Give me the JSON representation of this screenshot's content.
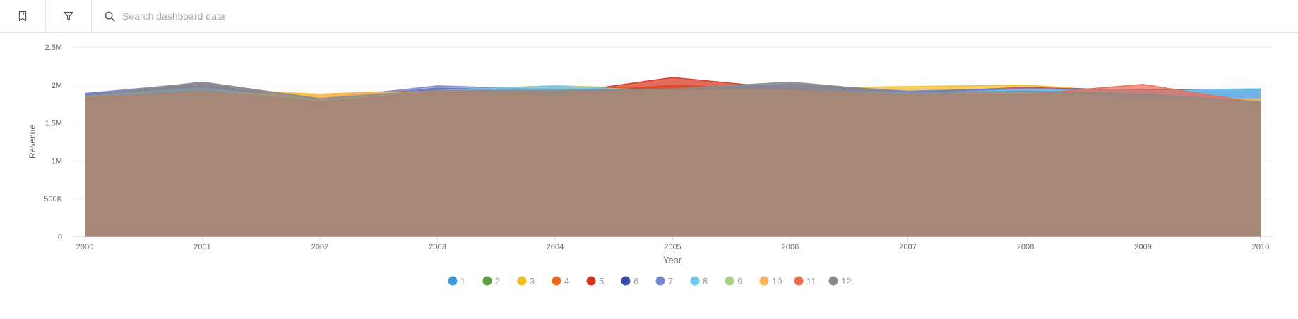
{
  "toolbar": {
    "bookmark_icon": "bookmark-icon",
    "filter_icon": "filter-icon",
    "search_icon": "search-icon",
    "search_placeholder": "Search dashboard data",
    "search_value": ""
  },
  "chart_data": {
    "type": "area",
    "xlabel": "Year",
    "ylabel": "Revenue",
    "x": [
      2000,
      2001,
      2002,
      2003,
      2004,
      2005,
      2006,
      2007,
      2008,
      2009,
      2010
    ],
    "x_tick_labels": [
      "2000",
      "2001",
      "2002",
      "2003",
      "2004",
      "2005",
      "2006",
      "2007",
      "2008",
      "2009",
      "2010"
    ],
    "ylim": [
      0,
      2500000
    ],
    "y_ticks": [
      0,
      500000,
      1000000,
      1500000,
      2000000,
      2500000
    ],
    "y_tick_labels": [
      "0",
      "500K",
      "1M",
      "1.5M",
      "2M",
      "2.5M"
    ],
    "grid": true,
    "legend_position": "bottom",
    "series": [
      {
        "name": "1",
        "color": "#3d9ad6",
        "values": [
          1850000,
          1950000,
          1800000,
          1920000,
          1960000,
          1900000,
          1950000,
          1900000,
          1950000,
          1930000,
          1950000
        ]
      },
      {
        "name": "2",
        "color": "#5e9e3c",
        "values": [
          1830000,
          1900000,
          1790000,
          1900000,
          1880000,
          1920000,
          1900000,
          1880000,
          1920000,
          1880000,
          1860000
        ]
      },
      {
        "name": "3",
        "color": "#f3bc23",
        "values": [
          1860000,
          1950000,
          1880000,
          1940000,
          1990000,
          1950000,
          1960000,
          1980000,
          2000000,
          1900000,
          1820000
        ]
      },
      {
        "name": "4",
        "color": "#f06a1b",
        "values": [
          1840000,
          1940000,
          1770000,
          1910000,
          1870000,
          2000000,
          1930000,
          1860000,
          1930000,
          1900000,
          1830000
        ]
      },
      {
        "name": "5",
        "color": "#d8351f",
        "values": [
          1870000,
          2010000,
          1800000,
          1940000,
          1880000,
          2100000,
          1950000,
          1900000,
          1970000,
          1920000,
          1840000
        ]
      },
      {
        "name": "6",
        "color": "#3f48a7",
        "values": [
          1880000,
          2000000,
          1810000,
          1960000,
          1920000,
          1930000,
          2010000,
          1910000,
          1960000,
          1940000,
          1940000
        ]
      },
      {
        "name": "7",
        "color": "#7b86d3",
        "values": [
          1890000,
          2030000,
          1820000,
          1990000,
          1940000,
          1940000,
          2020000,
          1920000,
          1960000,
          1930000,
          1930000
        ]
      },
      {
        "name": "8",
        "color": "#6ec9f1",
        "values": [
          1860000,
          1960000,
          1800000,
          1930000,
          1990000,
          1920000,
          1940000,
          1890000,
          1940000,
          1920000,
          1950000
        ]
      },
      {
        "name": "9",
        "color": "#a5d17d",
        "values": [
          1810000,
          1870000,
          1780000,
          1890000,
          1850000,
          1880000,
          1760000,
          1850000,
          1840000,
          1800000,
          1720000
        ]
      },
      {
        "name": "10",
        "color": "#f6b35a",
        "values": [
          1840000,
          1900000,
          1880000,
          1920000,
          1880000,
          1930000,
          1910000,
          1870000,
          1900000,
          1820000,
          1820000
        ]
      },
      {
        "name": "11",
        "color": "#ec6c52",
        "values": [
          1830000,
          1920000,
          1780000,
          1910000,
          1900000,
          1950000,
          1940000,
          1870000,
          1880000,
          2010000,
          1760000
        ]
      },
      {
        "name": "12",
        "color": "#8d8a83",
        "values": [
          1860000,
          2040000,
          1820000,
          1930000,
          1930000,
          1950000,
          2040000,
          1900000,
          1920000,
          1880000,
          1780000
        ]
      }
    ]
  }
}
